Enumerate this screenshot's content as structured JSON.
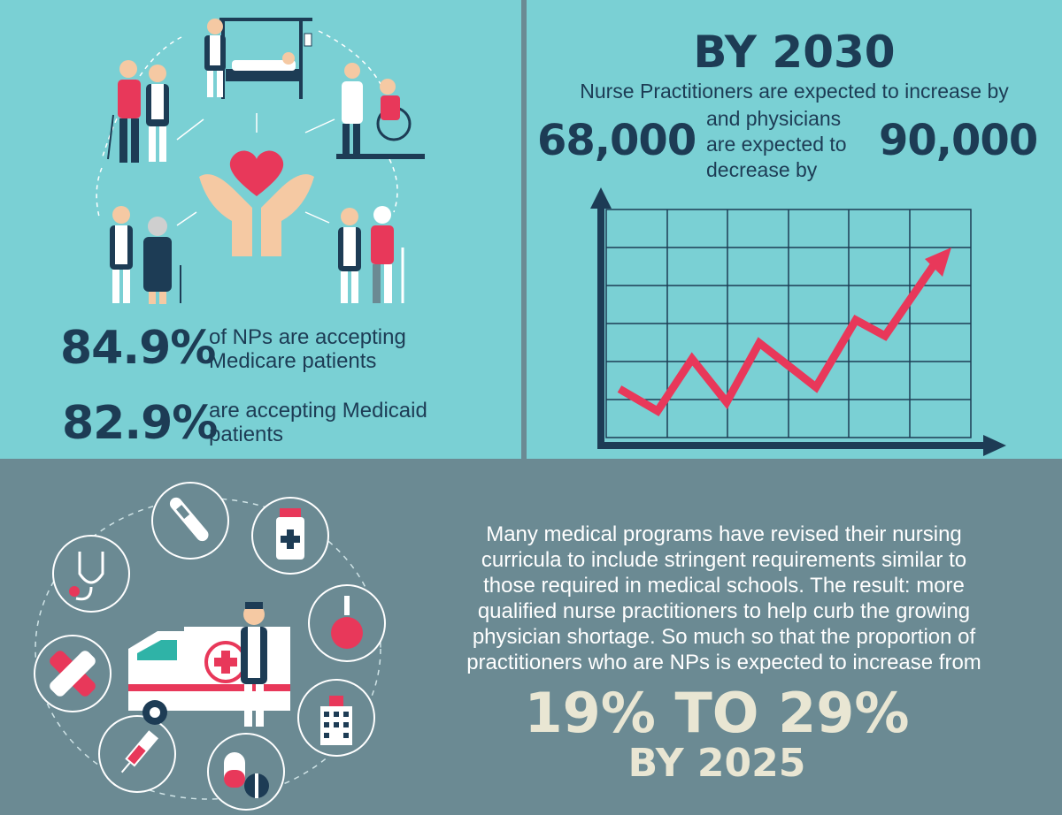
{
  "top_left": {
    "stat1": {
      "value": "84.9%",
      "text_line1": "of NPs are accepting",
      "text_line2": "Medicare patients"
    },
    "stat2": {
      "value": "82.9%",
      "text_line1": "are accepting Medicaid",
      "text_line2": "patients"
    },
    "icons": [
      "heart-hands-icon",
      "nurse-patient-icon",
      "hospital-bed-icon",
      "wheelchair-icon",
      "nurse-elderly-icon",
      "injured-patient-icon"
    ]
  },
  "top_right": {
    "title": "BY 2030",
    "line1": "Nurse Practitioners are expected to increase by",
    "np_value": "68,000",
    "mid_line1": "and physicians",
    "mid_line2": "are expected to",
    "mid_line3": "decrease by",
    "phys_value": "90,000",
    "chart_icon": "rising-line-chart-icon"
  },
  "bottom": {
    "paragraph": [
      "Many medical programs have revised their nursing",
      "curricula to include stringent requirements similar to",
      "those required in medical schools. The result: more",
      "qualified nurse practitioners to help curb the growing",
      "physician shortage. So much so that the proportion of",
      "practitioners who are NPs is expected to increase from"
    ],
    "callout_main": "19% TO 29%",
    "callout_sub": "BY 2025",
    "icons": [
      "thermometer-icon",
      "medicine-bottle-icon",
      "stethoscope-icon",
      "bulb-syringe-icon",
      "bandage-icon",
      "hospital-building-icon",
      "syringe-icon",
      "pills-icon",
      "ambulance-icon",
      "nurse-icon"
    ]
  },
  "colors": {
    "top_bg": "#7ad0d4",
    "bottom_bg": "#6b8a93",
    "navy": "#1d3c55",
    "accent_red": "#e8385a",
    "callout": "#e9e6d3"
  }
}
